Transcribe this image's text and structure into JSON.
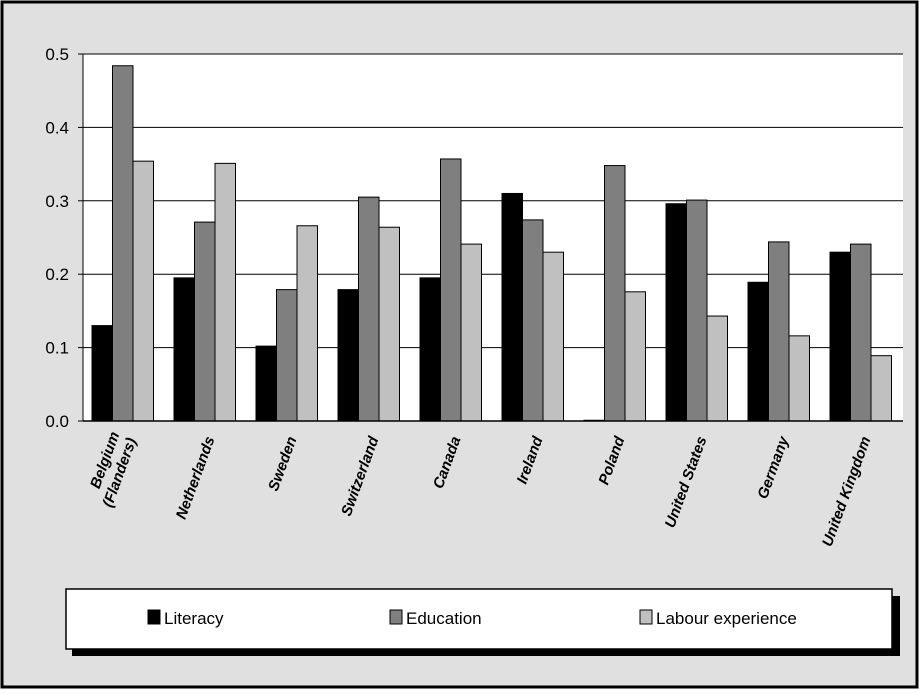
{
  "chart_data": {
    "type": "bar",
    "categories": [
      "Belgium\n(Flanders)",
      "Netherlands",
      "Sweden",
      "Switzerland",
      "Canada",
      "Ireland",
      "Poland",
      "United States",
      "Germany",
      "United Kingdom"
    ],
    "series": [
      {
        "name": "Literacy",
        "color": "#000000",
        "values": [
          0.13,
          0.195,
          0.102,
          0.179,
          0.195,
          0.31,
          0.001,
          0.296,
          0.189,
          0.23
        ]
      },
      {
        "name": "Education",
        "color": "#7f7f7f",
        "values": [
          0.484,
          0.271,
          0.179,
          0.305,
          0.357,
          0.274,
          0.348,
          0.301,
          0.244,
          0.241
        ]
      },
      {
        "name": "Labour experience",
        "color": "#c0c0c0",
        "values": [
          0.354,
          0.351,
          0.266,
          0.264,
          0.241,
          0.23,
          0.176,
          0.143,
          0.116,
          0.089
        ]
      }
    ],
    "yticks": [
      "0.0",
      "0.1",
      "0.2",
      "0.3",
      "0.4",
      "0.5"
    ],
    "ylim": [
      0,
      0.5
    ],
    "grid": true,
    "legend_position": "bottom",
    "title": "",
    "xlabel": "",
    "ylabel": ""
  }
}
